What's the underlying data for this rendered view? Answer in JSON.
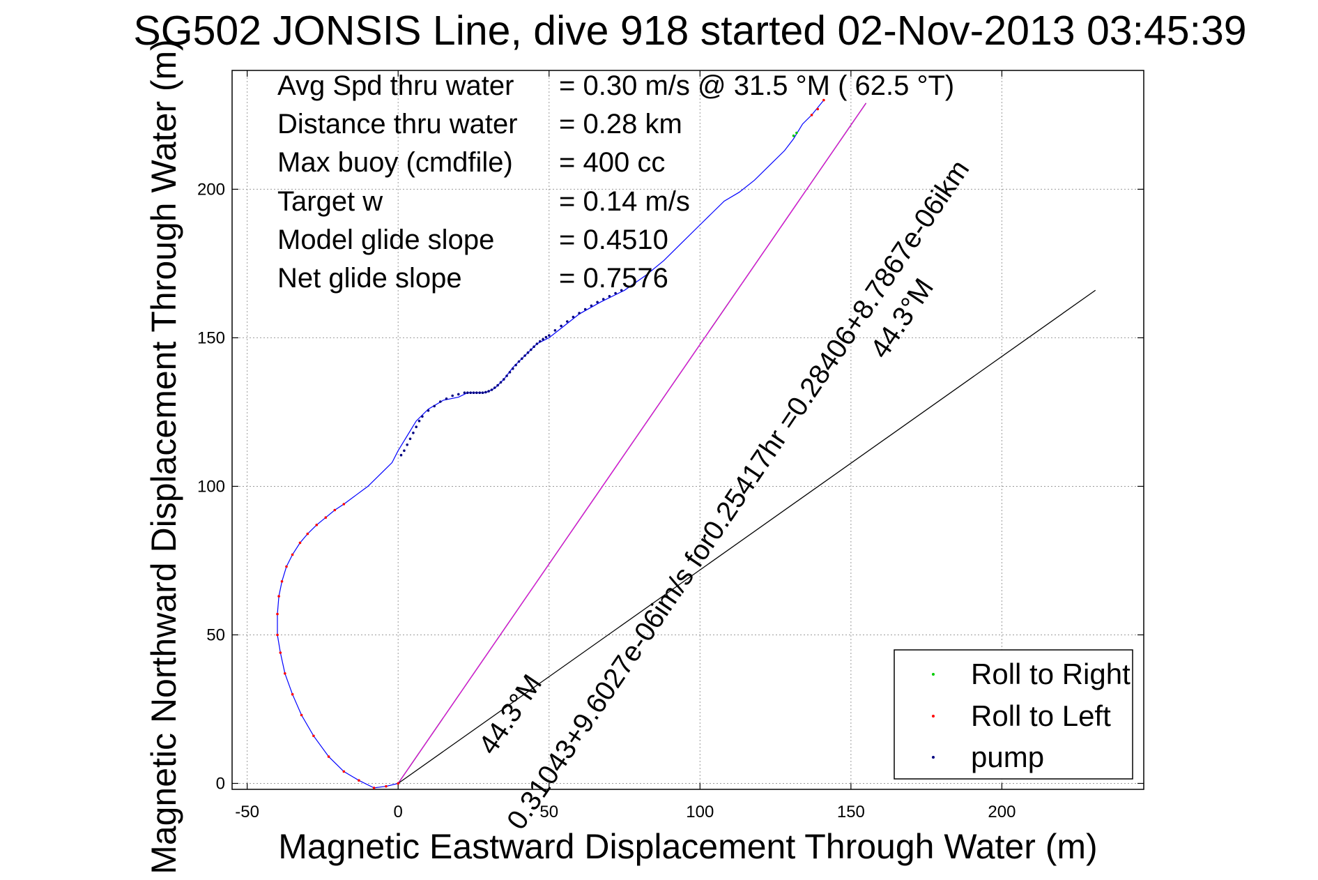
{
  "chart_data": {
    "type": "line",
    "title": "SG502 JONSIS Line, dive 918 started 02-Nov-2013 03:45:39",
    "xlabel": "Magnetic Eastward Displacement Through Water (m)",
    "ylabel": "Magnetic Northward Displacement Through Water (m)",
    "xlim": [
      -55,
      247
    ],
    "ylim": [
      -2,
      240
    ],
    "xticks": [
      -50,
      0,
      50,
      100,
      150,
      200
    ],
    "yticks": [
      0,
      50,
      100,
      150,
      200
    ],
    "grid": true,
    "legend_position": "bottom-right",
    "stats": [
      {
        "label": "Avg Spd thru water",
        "value": "=  0.30 m/s @  31.5 °M ( 62.5 °T)"
      },
      {
        "label": "Distance thru water",
        "value": "=  0.28 km"
      },
      {
        "label": "Max buoy (cmdfile)",
        "value": "= 400 cc"
      },
      {
        "label": "Target w",
        "value": "= 0.14 m/s"
      },
      {
        "label": "Model glide slope",
        "value": "= 0.4510"
      },
      {
        "label": "Net glide slope",
        "value": "= 0.7576"
      }
    ],
    "annotations": {
      "current_line": "0.31043+9.6027e-06im/s for0.25417hr =0.28406+8.7867e-06ikm",
      "heading_upper": "44.3°M",
      "heading_lower": "44.3°M"
    },
    "legend": [
      {
        "label": "Roll to Right",
        "color": "#00cc00"
      },
      {
        "label": "Roll to Left",
        "color": "#ff0000"
      },
      {
        "label": "pump",
        "color": "#000080"
      }
    ],
    "series": [
      {
        "color": "#0000ff",
        "x": [
          0,
          -4,
          -8,
          -13,
          -18,
          -23,
          -28,
          -32,
          -35,
          -37.5,
          -39,
          -40,
          -40,
          -39.5,
          -38.5,
          -37,
          -35,
          -32.5,
          -30,
          -27,
          -24,
          -21,
          -18,
          -14,
          -10,
          -6,
          -2,
          0,
          3,
          6,
          10,
          15,
          20,
          23,
          25,
          27,
          29,
          30,
          32,
          35,
          38,
          42,
          46,
          50,
          55,
          60,
          67,
          75,
          82,
          88,
          94,
          100,
          104,
          108,
          113,
          118,
          123,
          128,
          131,
          134,
          137,
          141
        ],
        "y": [
          0,
          -1,
          -1.5,
          1,
          4,
          9,
          16,
          23,
          30,
          37,
          44,
          50,
          57,
          63,
          68,
          73,
          77,
          81,
          84,
          87,
          89.5,
          92,
          94,
          97,
          100,
          104,
          108,
          112,
          117,
          122,
          126,
          129,
          130,
          131.5,
          131.5,
          131.5,
          131.5,
          132,
          133,
          136,
          140,
          144,
          148,
          150,
          154,
          158,
          162,
          166,
          171,
          176,
          182,
          188,
          192,
          196,
          199,
          203,
          208,
          213,
          217,
          222,
          225,
          230
        ]
      }
    ],
    "markers": {
      "roll_left": {
        "x": [
          0,
          -4,
          -8,
          -13,
          -18,
          -23,
          -28,
          -32,
          -35,
          -37.5,
          -39,
          -40,
          -40,
          -39.5,
          -38.5,
          -37,
          -35,
          -32.5,
          -30,
          -27,
          -24,
          -21,
          -18,
          137,
          139,
          141
        ],
        "y": [
          0,
          -1,
          -1.5,
          1,
          4,
          9,
          16,
          23,
          30,
          37,
          44,
          50,
          57,
          63,
          68,
          73,
          77,
          81,
          84,
          87,
          89.5,
          92,
          94,
          225,
          227,
          230
        ]
      },
      "roll_right": {
        "x": [
          131,
          132
        ],
        "y": [
          218,
          219
        ]
      },
      "pump": {
        "x": [
          1,
          2,
          3,
          4,
          5,
          6,
          7,
          8,
          10,
          12,
          14,
          16,
          18,
          20,
          22,
          23,
          24,
          25,
          26,
          27,
          28,
          29,
          30,
          31,
          32,
          33,
          34,
          35,
          36,
          37,
          38,
          39,
          40,
          41,
          42,
          43,
          44,
          45,
          46,
          47,
          48,
          49,
          50,
          52,
          54,
          56,
          58,
          60,
          62,
          64,
          66,
          68,
          70,
          72,
          74
        ],
        "y": [
          110.5,
          112,
          114,
          116,
          118,
          120,
          122,
          123.5,
          125.5,
          127,
          128.5,
          129.5,
          130.5,
          131,
          131.5,
          131.5,
          131.5,
          131.5,
          131.5,
          131.5,
          131.5,
          131.7,
          132,
          132.5,
          133.2,
          134,
          135,
          136,
          137.2,
          138.4,
          139.6,
          140.8,
          142,
          143,
          144,
          145,
          146,
          147,
          148,
          148.8,
          149.5,
          150.2,
          150.8,
          152.5,
          154,
          155.5,
          157,
          158.3,
          159.6,
          160.8,
          162,
          163,
          164,
          165,
          166
        ]
      }
    },
    "reference_lines": [
      {
        "name": "glide-line-a",
        "color": "#000000",
        "x": [
          0,
          155
        ],
        "y": [
          0,
          229
        ]
      },
      {
        "name": "glide-line-b",
        "color": "#000000",
        "x": [
          0,
          231
        ],
        "y": [
          0,
          166
        ]
      },
      {
        "name": "current-line",
        "color": "#ff00ff",
        "x": [
          0,
          155
        ],
        "y": [
          0,
          229
        ]
      }
    ]
  }
}
